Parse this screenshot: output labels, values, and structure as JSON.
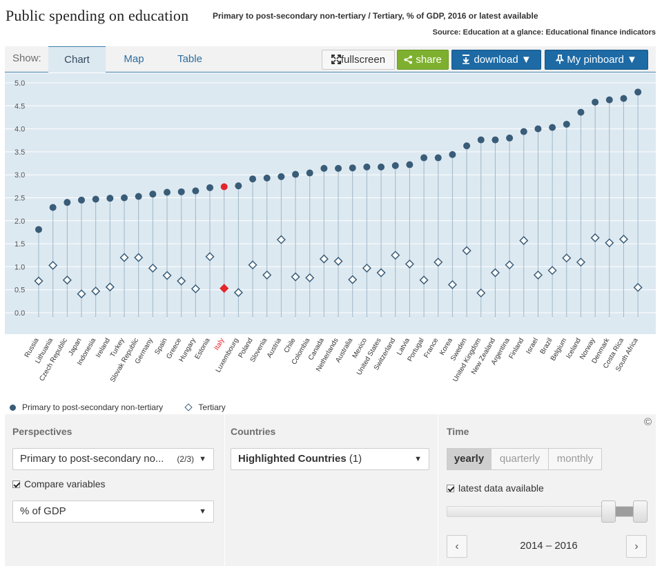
{
  "header": {
    "title": "Public spending on education",
    "subtitle": "Primary to post-secondary non-tertiary / Tertiary, % of GDP, 2016 or latest available",
    "source": "Source: Education at a glance: Educational finance indicators"
  },
  "toolbar": {
    "show_label": "Show:",
    "tabs": [
      "Chart",
      "Map",
      "Table"
    ],
    "active_tab": "Chart",
    "fullscreen_label": "fullscreen",
    "share_label": "share",
    "download_label": "download",
    "pinboard_label": "My pinboard"
  },
  "colors": {
    "series_primary": "#395c78",
    "highlight": "#e3262b",
    "plot_background": "#dde9f1",
    "button_blue": "#1d6aa5",
    "button_green": "#7eb02f"
  },
  "chart_data": {
    "type": "dot",
    "title": "Public spending on education",
    "ylim": [
      0,
      5
    ],
    "yticks": [
      "0.0",
      "0.5",
      "1.0",
      "1.5",
      "2.0",
      "2.5",
      "3.0",
      "3.5",
      "4.0",
      "4.5",
      "5.0"
    ],
    "grid": true,
    "legend_position": "bottom-left",
    "highlighted_category": "Italy",
    "categories": [
      "Russia",
      "Lithuania",
      "Czech Republic",
      "Japan",
      "Indonesia",
      "Ireland",
      "Turkey",
      "Slovak Republic",
      "Germany",
      "Spain",
      "Greece",
      "Hungary",
      "Estonia",
      "Italy",
      "Luxembourg",
      "Poland",
      "Slovenia",
      "Austria",
      "Chile",
      "Colombia",
      "Canada",
      "Netherlands",
      "Australia",
      "Mexico",
      "United States",
      "Switzerland",
      "Latvia",
      "Portugal",
      "France",
      "Korea",
      "Sweden",
      "United Kingdom",
      "New Zealand",
      "Argentina",
      "Finland",
      "Israel",
      "Brazil",
      "Belgium",
      "Iceland",
      "Norway",
      "Denmark",
      "Costa Rica",
      "South Africa"
    ],
    "series": [
      {
        "name": "Primary to post-secondary non-tertiary",
        "marker": "circle",
        "values": [
          1.81,
          2.29,
          2.4,
          2.45,
          2.47,
          2.49,
          2.5,
          2.53,
          2.58,
          2.62,
          2.63,
          2.65,
          2.72,
          2.74,
          2.76,
          2.91,
          2.93,
          2.96,
          3.01,
          3.04,
          3.14,
          3.14,
          3.15,
          3.17,
          3.17,
          3.2,
          3.22,
          3.37,
          3.37,
          3.44,
          3.63,
          3.76,
          3.76,
          3.8,
          3.94,
          4.0,
          4.03,
          4.1,
          4.36,
          4.58,
          4.63,
          4.66,
          4.8
        ]
      },
      {
        "name": "Tertiary",
        "marker": "diamond",
        "values": [
          0.69,
          1.03,
          0.71,
          0.41,
          0.47,
          0.56,
          1.2,
          1.2,
          0.97,
          0.81,
          0.69,
          0.52,
          1.22,
          0.53,
          0.44,
          1.04,
          0.82,
          1.59,
          0.78,
          0.76,
          1.17,
          1.12,
          0.72,
          0.97,
          0.87,
          1.25,
          1.06,
          0.71,
          1.1,
          0.61,
          1.35,
          0.43,
          0.87,
          1.04,
          1.57,
          0.82,
          0.92,
          1.19,
          1.1,
          1.63,
          1.52,
          1.6,
          0.55
        ]
      }
    ]
  },
  "legend": {
    "items": [
      "Primary to post-secondary non-tertiary",
      "Tertiary"
    ]
  },
  "controls": {
    "perspectives": {
      "title": "Perspectives",
      "selected": "Primary to post-secondary no...",
      "count": "(2/3)",
      "compare_label": "Compare variables",
      "compare_checked": true,
      "unit_selected": "% of GDP"
    },
    "countries": {
      "title": "Countries",
      "selected": "Highlighted Countries",
      "count": "(1)"
    },
    "time": {
      "title": "Time",
      "options": [
        "yearly",
        "quarterly",
        "monthly"
      ],
      "active": "yearly",
      "latest_label": "latest data available",
      "latest_checked": true,
      "period": "2014 – 2016",
      "prev_label": "‹",
      "next_label": "›"
    },
    "copyright": "©"
  }
}
